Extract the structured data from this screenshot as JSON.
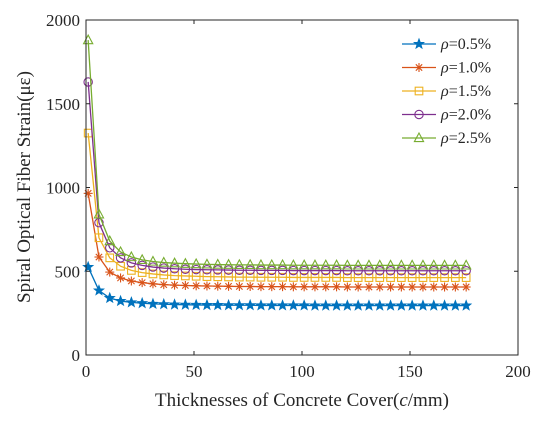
{
  "chart_data": {
    "type": "line",
    "xlabel": "Thicknesses of Concrete Cover(c/mm)",
    "xlabel_parts": [
      "Thicknesses of Concrete Cover(",
      "c",
      "/mm)"
    ],
    "ylabel": "Spiral Optical Fiber Strain(με)",
    "xlim": [
      0,
      200
    ],
    "ylim": [
      0,
      2000
    ],
    "xticks": [
      0,
      50,
      100,
      150,
      200
    ],
    "yticks": [
      0,
      500,
      1000,
      1500,
      2000
    ],
    "grid": false,
    "legend_position": "top-right",
    "x": [
      1,
      6,
      11,
      16,
      21,
      26,
      31,
      36,
      41,
      46,
      51,
      56,
      61,
      66,
      71,
      76,
      81,
      86,
      91,
      96,
      101,
      106,
      111,
      116,
      121,
      126,
      131,
      136,
      141,
      146,
      151,
      156,
      161,
      166,
      171,
      176
    ],
    "series": [
      {
        "name": "ρ=0.5%",
        "symbol": "ρ",
        "value_text": "=0.5%",
        "color": "#0072BD",
        "marker": "star",
        "values": [
          525,
          385,
          340,
          322,
          314,
          309,
          305,
          303,
          301,
          300,
          299,
          298,
          298,
          297,
          297,
          297,
          296,
          296,
          296,
          296,
          296,
          295,
          295,
          295,
          295,
          295,
          295,
          295,
          295,
          295,
          295,
          295,
          295,
          295,
          295,
          295
        ]
      },
      {
        "name": "ρ=1.0%",
        "symbol": "ρ",
        "value_text": "=1.0%",
        "color": "#D95319",
        "marker": "asterisk",
        "values": [
          965,
          585,
          495,
          460,
          442,
          432,
          425,
          420,
          417,
          415,
          413,
          412,
          411,
          410,
          409,
          409,
          408,
          408,
          408,
          407,
          407,
          407,
          407,
          407,
          406,
          406,
          406,
          406,
          406,
          406,
          406,
          406,
          406,
          406,
          406,
          406
        ]
      },
      {
        "name": "ρ=1.5%",
        "symbol": "ρ",
        "value_text": "=1.5%",
        "color": "#EDB120",
        "marker": "square",
        "values": [
          1325,
          700,
          580,
          530,
          505,
          492,
          484,
          478,
          474,
          472,
          470,
          468,
          467,
          466,
          465,
          465,
          464,
          464,
          464,
          463,
          463,
          463,
          463,
          463,
          462,
          462,
          462,
          462,
          462,
          462,
          462,
          462,
          462,
          462,
          462,
          462
        ]
      },
      {
        "name": "ρ=2.0%",
        "symbol": "ρ",
        "value_text": "=2.0%",
        "color": "#7E2F8E",
        "marker": "circle",
        "values": [
          1630,
          790,
          640,
          580,
          550,
          535,
          525,
          519,
          515,
          512,
          510,
          509,
          508,
          507,
          506,
          506,
          505,
          505,
          505,
          504,
          504,
          504,
          504,
          504,
          503,
          503,
          503,
          503,
          503,
          503,
          503,
          503,
          503,
          503,
          503,
          503
        ]
      },
      {
        "name": "ρ=2.5%",
        "symbol": "ρ",
        "value_text": "=2.5%",
        "color": "#77AC30",
        "marker": "triangle",
        "values": [
          1880,
          840,
          680,
          615,
          585,
          568,
          558,
          552,
          548,
          545,
          543,
          541,
          540,
          539,
          538,
          538,
          537,
          537,
          537,
          536,
          536,
          536,
          536,
          536,
          535,
          535,
          535,
          535,
          535,
          535,
          535,
          535,
          535,
          535,
          535,
          535
        ]
      }
    ]
  }
}
